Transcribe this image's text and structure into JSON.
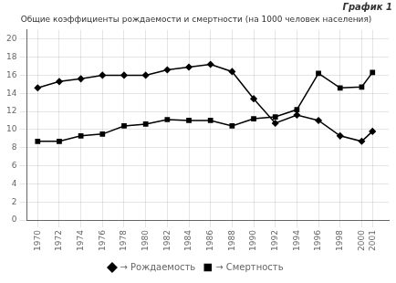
{
  "chart_data": {
    "type": "line",
    "title": "Общие коэффициенты рождаемости и смертности (на 1000 человек населения)",
    "annotations": [
      "График 1"
    ],
    "x": [
      1970,
      1972,
      1974,
      1976,
      1978,
      1980,
      1982,
      1984,
      1986,
      1988,
      1990,
      1992,
      1994,
      1996,
      1998,
      2000,
      2001
    ],
    "series": [
      {
        "name": "→ Рождаемость",
        "color": "#000000",
        "marker": "diamond",
        "values": [
          14.6,
          15.3,
          15.6,
          16.0,
          16.0,
          16.0,
          16.6,
          16.9,
          17.2,
          16.4,
          13.4,
          10.7,
          11.6,
          11.0,
          9.3,
          8.7,
          9.8
        ]
      },
      {
        "name": "→ Смертность",
        "color": "#000000",
        "marker": "square",
        "values": [
          8.7,
          8.7,
          9.3,
          9.5,
          10.4,
          10.6,
          11.1,
          11.0,
          11.0,
          10.4,
          11.2,
          11.4,
          12.2,
          16.2,
          14.6,
          14.7,
          16.3
        ]
      }
    ],
    "xlim": [
      1969,
      2002.5
    ],
    "xticks": [
      1970,
      1972,
      1974,
      1976,
      1978,
      1980,
      1982,
      1984,
      1986,
      1988,
      1990,
      1992,
      1994,
      1996,
      1998,
      2000,
      2001
    ],
    "ylim": [
      0,
      21
    ],
    "yticks": [
      0,
      2,
      4,
      6,
      8,
      10,
      12,
      14,
      16,
      18,
      20
    ],
    "grid": true,
    "legend": "bottom"
  }
}
